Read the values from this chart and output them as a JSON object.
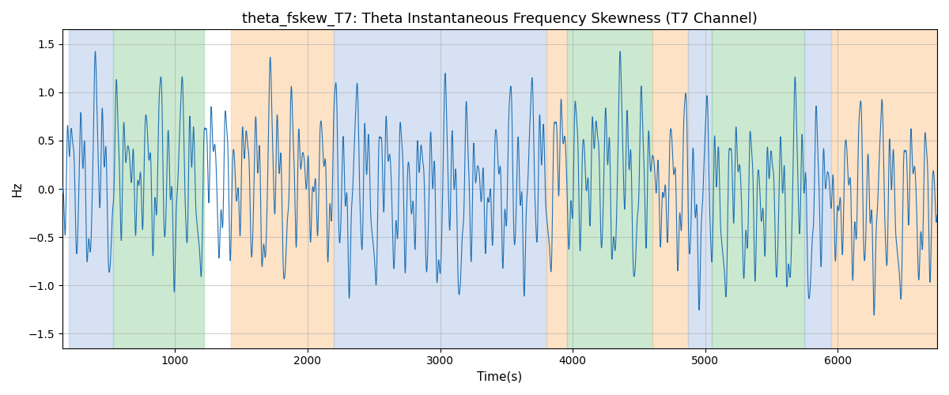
{
  "title": "theta_fskew_T7: Theta Instantaneous Frequency Skewness (T7 Channel)",
  "xlabel": "Time(s)",
  "ylabel": "Hz",
  "ylim": [
    -1.65,
    1.65
  ],
  "xlim": [
    150,
    6750
  ],
  "line_color": "#2171b5",
  "line_width": 0.8,
  "bg_bands": [
    {
      "xmin": 200,
      "xmax": 530,
      "color": "#aec6e8",
      "alpha": 0.5
    },
    {
      "xmin": 530,
      "xmax": 1220,
      "color": "#98d4a3",
      "alpha": 0.5
    },
    {
      "xmin": 1420,
      "xmax": 2200,
      "color": "#fcc78e",
      "alpha": 0.5
    },
    {
      "xmin": 2200,
      "xmax": 3800,
      "color": "#aec6e8",
      "alpha": 0.5
    },
    {
      "xmin": 3800,
      "xmax": 3960,
      "color": "#fcc78e",
      "alpha": 0.5
    },
    {
      "xmin": 3960,
      "xmax": 4600,
      "color": "#98d4a3",
      "alpha": 0.5
    },
    {
      "xmin": 4600,
      "xmax": 4870,
      "color": "#fcc78e",
      "alpha": 0.5
    },
    {
      "xmin": 4870,
      "xmax": 5050,
      "color": "#aec6e8",
      "alpha": 0.5
    },
    {
      "xmin": 5050,
      "xmax": 5750,
      "color": "#98d4a3",
      "alpha": 0.5
    },
    {
      "xmin": 5750,
      "xmax": 5950,
      "color": "#aec6e8",
      "alpha": 0.5
    },
    {
      "xmin": 5950,
      "xmax": 6750,
      "color": "#fcc78e",
      "alpha": 0.5
    }
  ],
  "grid_color": "#b0b0b0",
  "grid_alpha": 0.6,
  "background_color": "#ffffff",
  "title_fontsize": 13,
  "axis_label_fontsize": 11,
  "tick_fontsize": 10,
  "seed": 42,
  "n_points": 6600,
  "x_start": 150,
  "x_end": 6750
}
